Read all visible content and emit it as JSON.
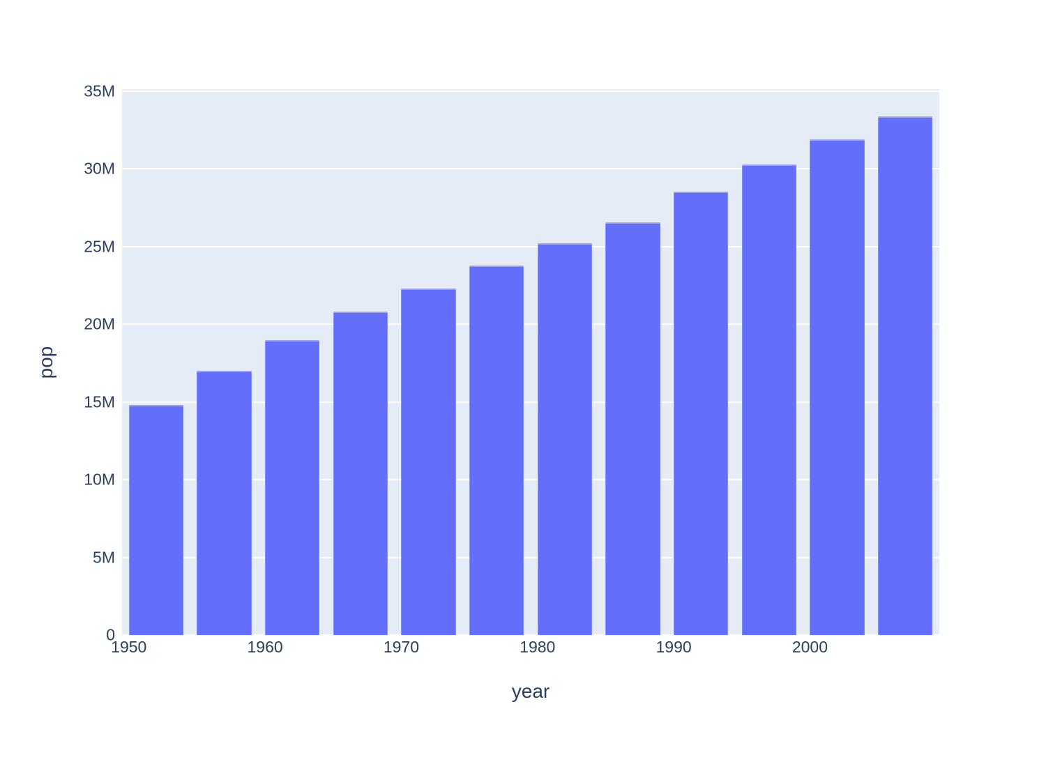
{
  "chart_data": {
    "type": "bar",
    "title": "",
    "xlabel": "year",
    "ylabel": "pop",
    "x": [
      1952,
      1957,
      1962,
      1967,
      1972,
      1977,
      1982,
      1987,
      1992,
      1997,
      2002,
      2007
    ],
    "values": [
      14785584,
      17010154,
      18985849,
      20819767,
      22284500,
      23796400,
      25201900,
      26549700,
      28523502,
      30305843,
      31902268,
      33390141
    ],
    "xlim": [
      1949.5,
      2009.5
    ],
    "ylim": [
      0,
      35130000
    ],
    "x_ticks": [
      1950,
      1960,
      1970,
      1980,
      1990,
      2000
    ],
    "x_tick_labels": [
      "1950",
      "1960",
      "1970",
      "1980",
      "1990",
      "2000"
    ],
    "y_ticks": [
      0,
      5000000,
      10000000,
      15000000,
      20000000,
      25000000,
      30000000,
      35000000
    ],
    "y_tick_labels": [
      "0",
      "5M",
      "10M",
      "15M",
      "20M",
      "25M",
      "30M",
      "35M"
    ],
    "bar_width_years": 4,
    "grid": true,
    "legend": false,
    "colors": {
      "bar": "#636efa",
      "plot_background": "#e5ecf6",
      "paper_background": "#ffffff",
      "gridline": "#ffffff",
      "text": "#2a3f5f"
    }
  }
}
